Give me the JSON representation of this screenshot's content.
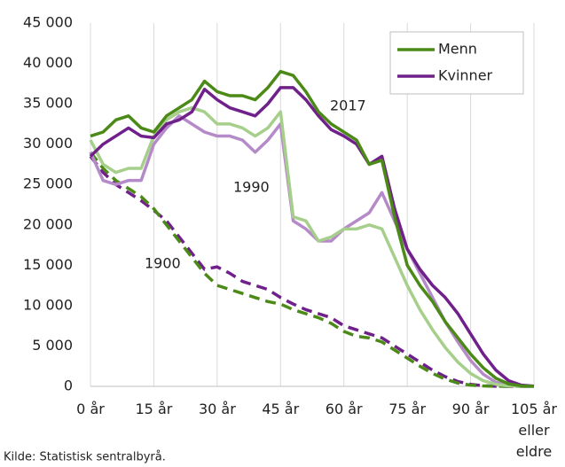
{
  "chart_data": {
    "type": "line",
    "source": "Kilde: Statistisk sentralbyrå.",
    "x": [
      0,
      3,
      6,
      9,
      12,
      15,
      18,
      21,
      24,
      27,
      30,
      33,
      36,
      39,
      42,
      45,
      48,
      51,
      54,
      57,
      60,
      63,
      66,
      69,
      72,
      75,
      78,
      81,
      84,
      87,
      90,
      93,
      96,
      99,
      102,
      105
    ],
    "series": [
      {
        "name": "Menn",
        "color": "#4c8a18",
        "dashed": false,
        "values": [
          31000,
          31500,
          33000,
          33500,
          32000,
          31500,
          33500,
          34500,
          35500,
          37800,
          36500,
          36000,
          36000,
          35500,
          37000,
          39000,
          38500,
          36500,
          34000,
          32500,
          31500,
          30500,
          27500,
          28000,
          21000,
          15000,
          12500,
          10500,
          8000,
          6000,
          4000,
          2300,
          1000,
          300,
          60,
          20
        ]
      },
      {
        "name": "Kvinner",
        "color": "#70208a",
        "dashed": false,
        "values": [
          28500,
          30000,
          31000,
          32000,
          31000,
          30800,
          32500,
          33000,
          34000,
          36800,
          35500,
          34500,
          34000,
          33500,
          35000,
          37000,
          37000,
          35500,
          33500,
          31800,
          31000,
          30000,
          27500,
          28500,
          22000,
          17000,
          14500,
          12500,
          11000,
          9000,
          6500,
          4000,
          2000,
          700,
          150,
          30
        ]
      },
      {
        "color": "#a7cf8c",
        "dashed": false,
        "values": [
          30500,
          27500,
          26500,
          27000,
          27000,
          31000,
          33000,
          34000,
          34500,
          34000,
          32500,
          32500,
          32000,
          31000,
          32000,
          34000,
          21000,
          20500,
          18000,
          18500,
          19500,
          19500,
          20000,
          19500,
          16000,
          12500,
          9500,
          7000,
          4800,
          3000,
          1600,
          700,
          250,
          60,
          10,
          2
        ]
      },
      {
        "color": "#b58ac8",
        "dashed": false,
        "values": [
          29000,
          25500,
          25000,
          25500,
          25500,
          30000,
          32000,
          33500,
          32500,
          31500,
          31000,
          31000,
          30500,
          29000,
          30500,
          32500,
          20500,
          19500,
          18000,
          18000,
          19500,
          20500,
          21500,
          24000,
          20500,
          17000,
          14000,
          11000,
          8000,
          5500,
          3200,
          1500,
          500,
          130,
          20,
          5
        ]
      },
      {
        "color": "#4c8a18",
        "dashed": true,
        "values": [
          29000,
          27000,
          25500,
          24500,
          23500,
          22000,
          20000,
          18000,
          16000,
          14000,
          12500,
          12000,
          11500,
          11000,
          10500,
          10200,
          9500,
          9000,
          8500,
          7800,
          6800,
          6200,
          6000,
          5500,
          4500,
          3500,
          2500,
          1600,
          900,
          400,
          150,
          50,
          10,
          2,
          0,
          0
        ]
      },
      {
        "color": "#70208a",
        "dashed": true,
        "values": [
          28500,
          26500,
          25000,
          24000,
          23000,
          21800,
          20500,
          18500,
          16500,
          14500,
          14800,
          14000,
          13000,
          12500,
          12000,
          11000,
          10200,
          9500,
          9000,
          8500,
          7500,
          7000,
          6500,
          6000,
          5000,
          4000,
          3000,
          2000,
          1200,
          600,
          250,
          80,
          20,
          5,
          0,
          0
        ]
      }
    ],
    "annotations": [
      "2017",
      "1990",
      "1900"
    ],
    "xlim": [
      0,
      105
    ],
    "xticks": [
      {
        "value": 0,
        "label": "0 år"
      },
      {
        "value": 15,
        "label": "15 år"
      },
      {
        "value": 30,
        "label": "30 år"
      },
      {
        "value": 45,
        "label": "45 år"
      },
      {
        "value": 60,
        "label": "60 år"
      },
      {
        "value": 75,
        "label": "75 år"
      },
      {
        "value": 90,
        "label": "90 år"
      },
      {
        "value": 105,
        "label": "105 år\neller\neldre"
      }
    ],
    "ylim": [
      0,
      45000
    ],
    "yticks": [
      0,
      {
        "value": 5000,
        "label": "5 000"
      },
      {
        "value": 10000,
        "label": "10 000"
      },
      {
        "value": 15000,
        "label": "15 000"
      },
      {
        "value": 20000,
        "label": "20 000"
      },
      {
        "value": 25000,
        "label": "25 000"
      },
      {
        "value": 30000,
        "label": "30 000"
      },
      {
        "value": 35000,
        "label": "35 000"
      },
      {
        "value": 40000,
        "label": "40 000"
      },
      {
        "value": 45000,
        "label": "45 000"
      }
    ],
    "grid": "x",
    "legend": "upper right"
  }
}
